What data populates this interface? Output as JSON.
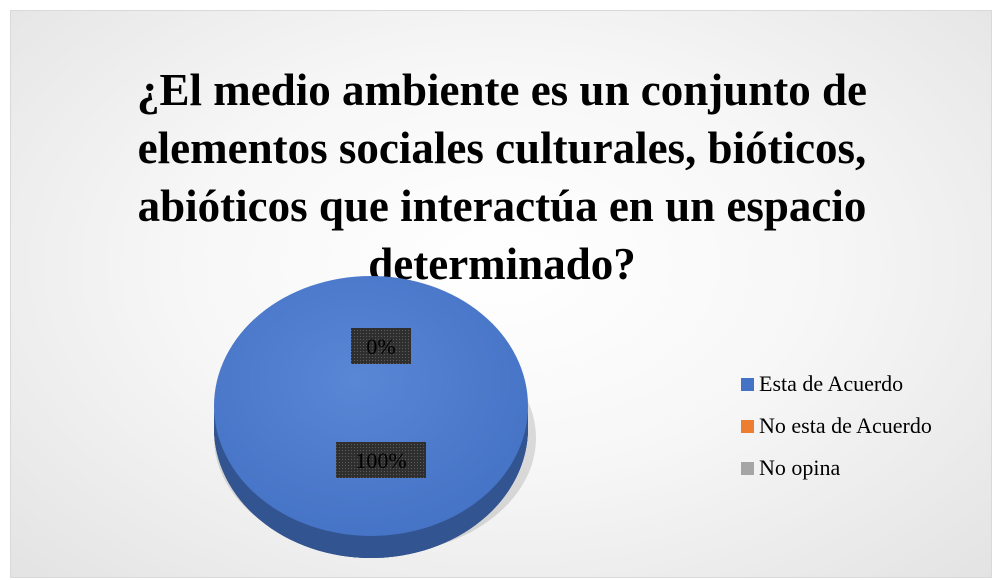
{
  "chart_data": {
    "type": "pie",
    "title": "¿El medio ambiente es un conjunto de elementos sociales culturales, bióticos, abióticos que interactúa en un espacio determinado?",
    "categories": [
      "Esta de Acuerdo",
      "No esta de Acuerdo",
      "No opina"
    ],
    "values": [
      100,
      0,
      0
    ],
    "data_labels": [
      "100%",
      "0%",
      ""
    ],
    "colors": [
      "#4472c4",
      "#ed7d31",
      "#a5a5a5"
    ],
    "legend_position": "right",
    "style": "3d"
  }
}
